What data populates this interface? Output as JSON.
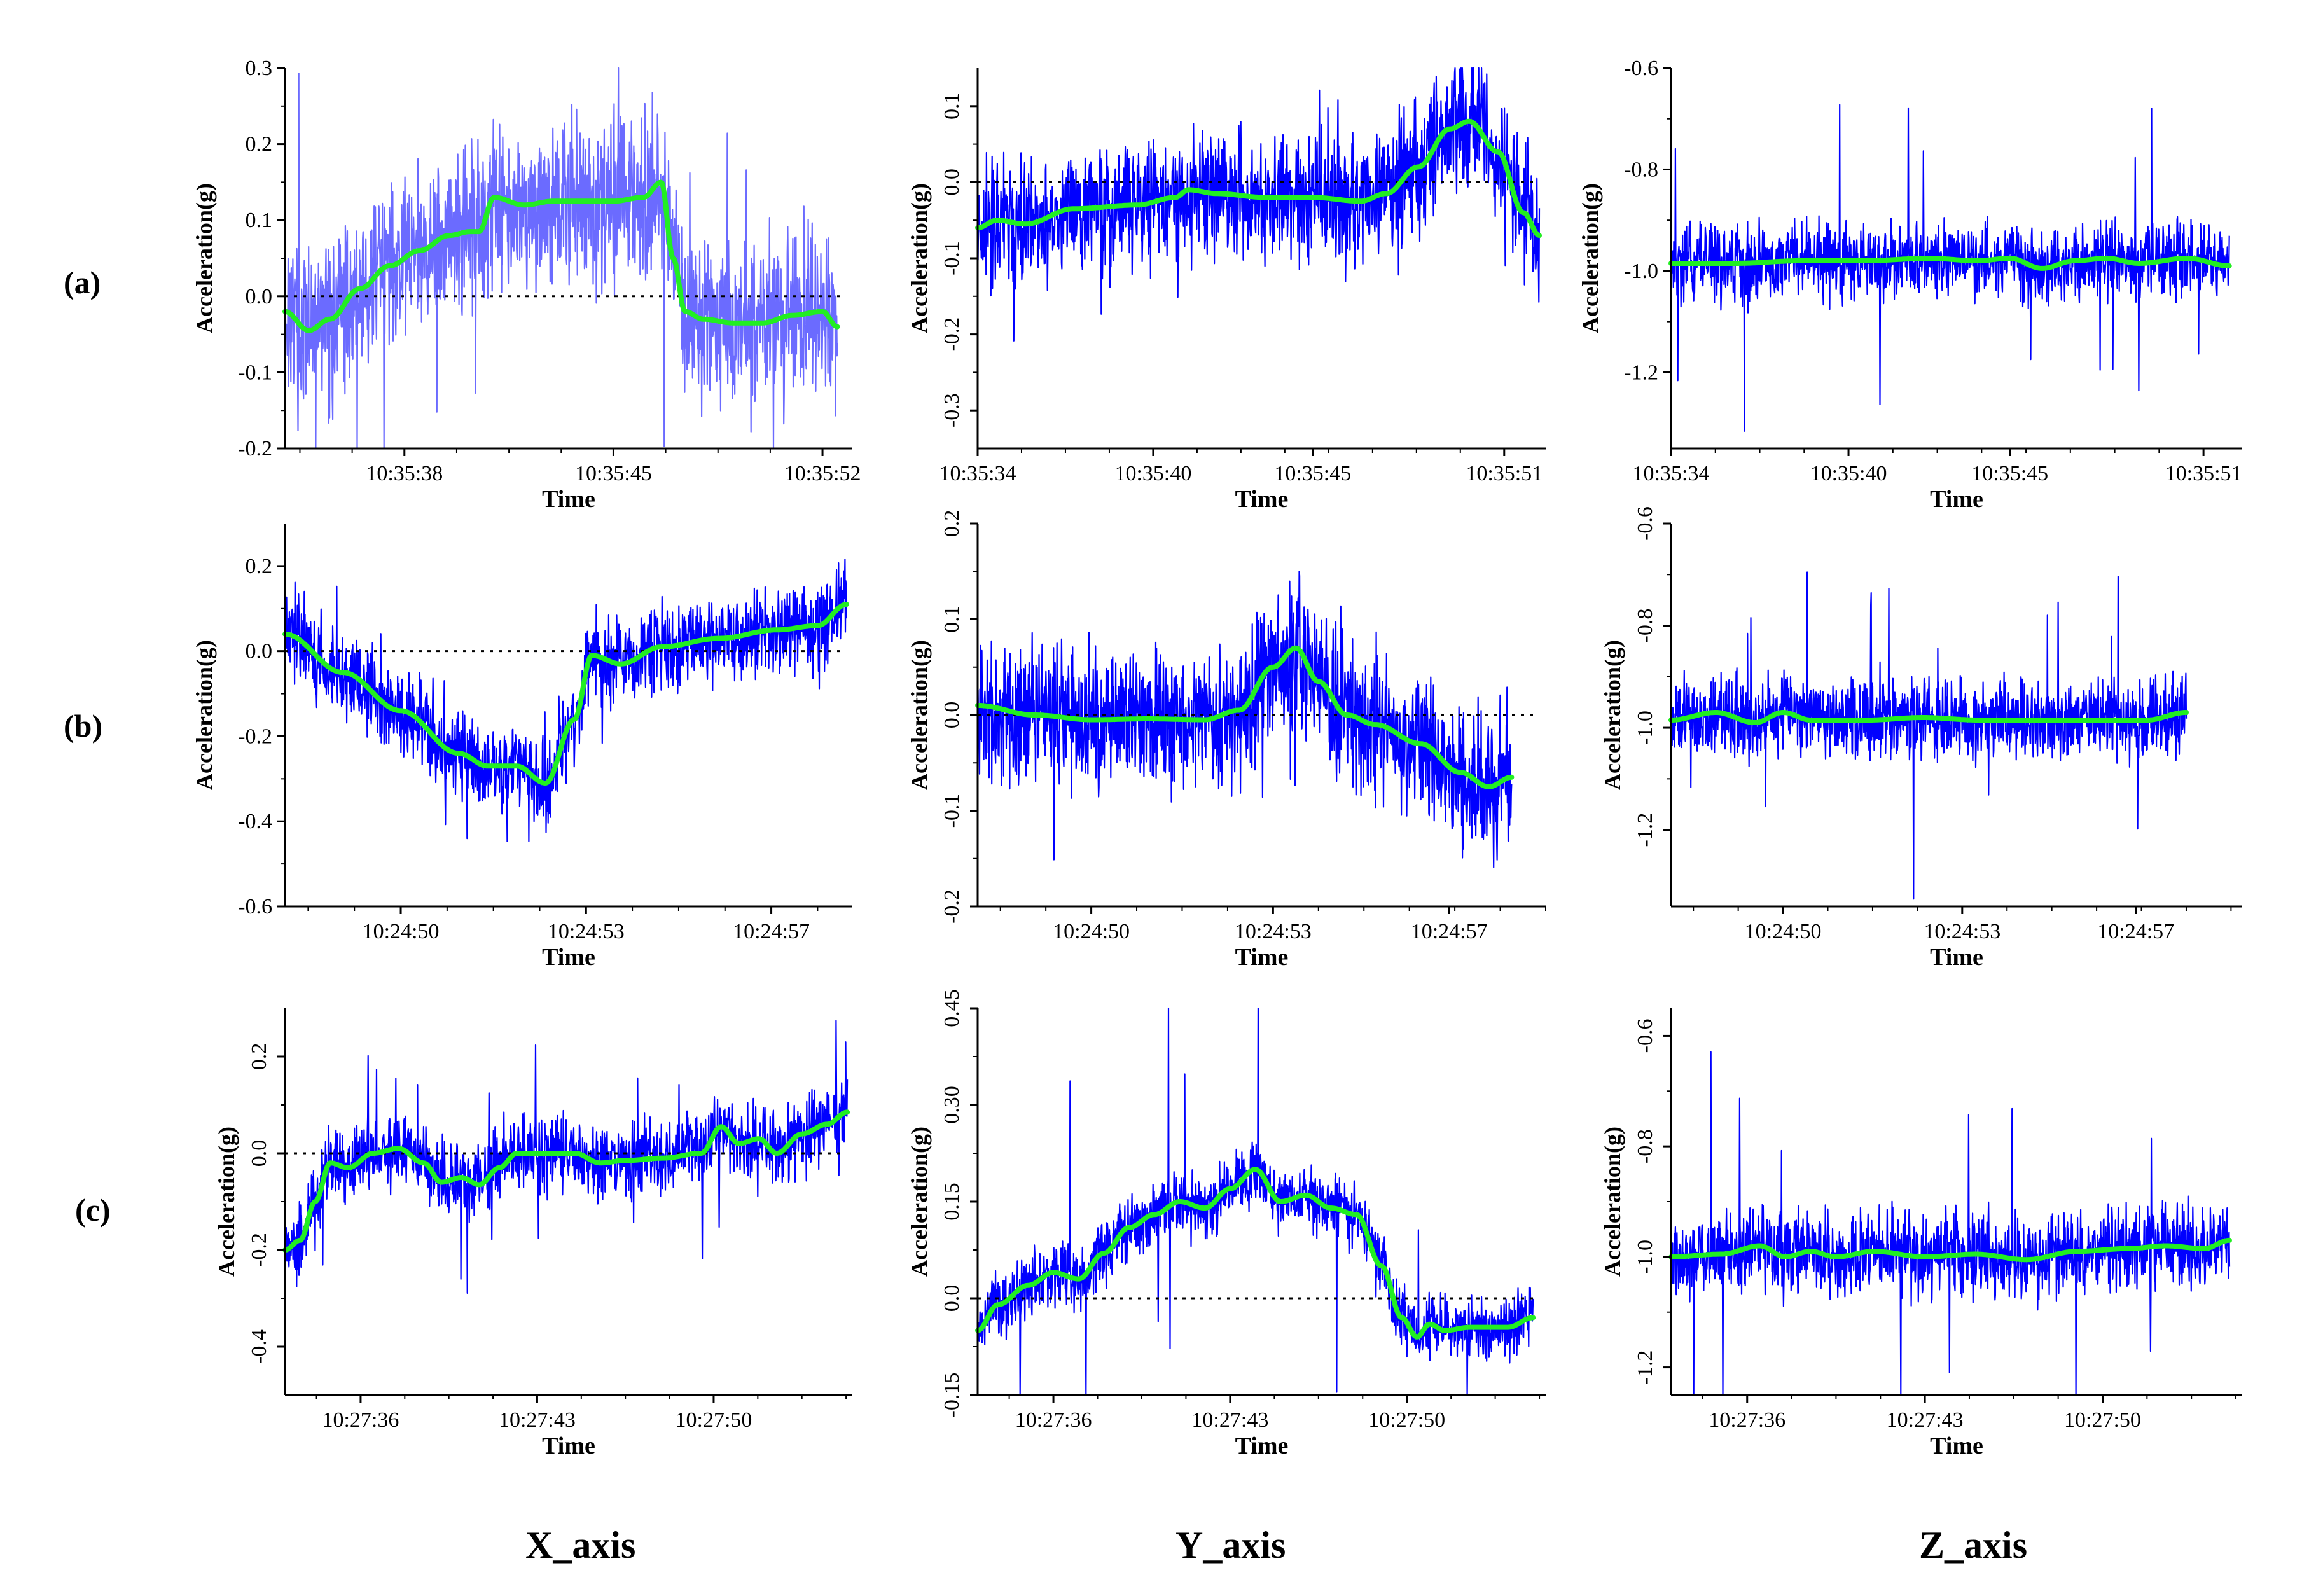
{
  "row_labels": [
    "(a)",
    "(b)",
    "(c)"
  ],
  "column_labels": [
    "X_axis",
    "Y_axis",
    "Z_axis"
  ],
  "colors": {
    "raw_signal": "#0000ff",
    "raw_signal_light": "#6b6bff",
    "smoothed": "#22ee22",
    "baseline": "#000000"
  },
  "chart_data": [
    {
      "type": "line",
      "row": "(a)",
      "axis": "X_axis",
      "title": "",
      "xlabel": "Time",
      "ylabel": "Acceleration(g)",
      "xticks": [
        "10:35:38",
        "10:35:45",
        "10:35:52"
      ],
      "xrange": [
        0,
        19
      ],
      "xtick_positions": [
        4,
        11,
        18
      ],
      "ylim": [
        -0.2,
        0.3
      ],
      "yticks": [
        -0.2,
        -0.1,
        0.0,
        0.1,
        0.2,
        0.3
      ],
      "ytick_labels_rotated": false,
      "baseline": 0.0,
      "raw_color": "#6b6bff",
      "noise": 0.065,
      "spike": 0.35,
      "series": [
        {
          "name": "raw",
          "style": "noisy"
        },
        {
          "name": "smoothed",
          "x": [
            0,
            0.8,
            1.5,
            2.5,
            3.5,
            4.5,
            5.5,
            6.2,
            6.5,
            7.0,
            8,
            9,
            10,
            11,
            12,
            12.6,
            13.0,
            13.4,
            14,
            15,
            16,
            17,
            18,
            18.5
          ],
          "values": [
            -0.02,
            -0.045,
            -0.03,
            0.01,
            0.04,
            0.06,
            0.08,
            0.085,
            0.085,
            0.13,
            0.12,
            0.125,
            0.125,
            0.125,
            0.13,
            0.15,
            0.05,
            -0.02,
            -0.03,
            -0.035,
            -0.035,
            -0.025,
            -0.02,
            -0.04
          ]
        }
      ]
    },
    {
      "type": "line",
      "row": "(a)",
      "axis": "Y_axis",
      "title": "",
      "xlabel": "Time",
      "ylabel": "Acceleration(g)",
      "xticks": [
        "10:35:34",
        "10:35:40",
        "10:35:45",
        "10:35:51"
      ],
      "xrange": [
        0,
        17.8
      ],
      "xtick_positions": [
        0,
        5.5,
        10.5,
        16.5
      ],
      "ylim": [
        -0.35,
        0.15
      ],
      "yticks": [
        -0.3,
        -0.2,
        -0.1,
        0.0,
        0.1
      ],
      "ytick_labels_rotated": true,
      "baseline": 0.0,
      "raw_color": "#0000ff",
      "noise": 0.05,
      "spike": 0.12,
      "series": [
        {
          "name": "raw",
          "style": "noisy"
        },
        {
          "name": "smoothed",
          "x": [
            0,
            0.6,
            1.5,
            3,
            5,
            6.2,
            6.6,
            7.5,
            9,
            10.5,
            12,
            12.8,
            13.8,
            14.8,
            15.4,
            16.3,
            17.1,
            17.6
          ],
          "values": [
            -0.06,
            -0.05,
            -0.055,
            -0.035,
            -0.03,
            -0.02,
            -0.01,
            -0.015,
            -0.02,
            -0.02,
            -0.025,
            -0.015,
            0.02,
            0.07,
            0.08,
            0.04,
            -0.04,
            -0.07
          ]
        }
      ]
    },
    {
      "type": "line",
      "row": "(a)",
      "axis": "Z_axis",
      "title": "",
      "xlabel": "Time",
      "ylabel": "Acceleration(g)",
      "xticks": [
        "10:35:34",
        "10:35:40",
        "10:35:45",
        "10:35:51"
      ],
      "xrange": [
        0,
        17.7
      ],
      "xtick_positions": [
        0,
        5.5,
        10.5,
        16.5
      ],
      "ylim": [
        -1.35,
        -0.6
      ],
      "yticks": [
        -1.2,
        -1.0,
        -0.8,
        -0.6
      ],
      "ytick_labels_rotated": false,
      "baseline": null,
      "raw_color": "#0000ff",
      "noise": 0.045,
      "spike": 0.35,
      "series": [
        {
          "name": "raw",
          "style": "noisy"
        },
        {
          "name": "smoothed",
          "x": [
            0,
            2,
            4,
            6,
            8,
            9.5,
            10.5,
            11.5,
            12.5,
            13.5,
            14.5,
            16,
            17.3
          ],
          "values": [
            -0.985,
            -0.985,
            -0.98,
            -0.98,
            -0.975,
            -0.98,
            -0.975,
            -0.995,
            -0.98,
            -0.975,
            -0.985,
            -0.975,
            -0.99
          ]
        }
      ]
    },
    {
      "type": "line",
      "row": "(b)",
      "axis": "X_axis",
      "title": "",
      "xlabel": "Time",
      "ylabel": "Acceleration(g)",
      "xticks": [
        "10:24:50",
        "10:24:53",
        "10:24:57"
      ],
      "xrange": [
        0,
        9.8
      ],
      "xtick_positions": [
        2,
        5.2,
        8.4
      ],
      "ylim": [
        -0.6,
        0.3
      ],
      "yticks": [
        -0.6,
        -0.4,
        -0.2,
        0.0,
        0.2
      ],
      "ytick_labels_rotated": false,
      "baseline": 0.0,
      "raw_color": "#0000ff",
      "noise": 0.06,
      "spike": 0.2,
      "series": [
        {
          "name": "raw",
          "style": "noisy"
        },
        {
          "name": "smoothed",
          "x": [
            0,
            1,
            2,
            3,
            3.5,
            4,
            4.5,
            5,
            5.3,
            5.8,
            6.5,
            7.5,
            8.5,
            9.2,
            9.7
          ],
          "values": [
            0.04,
            -0.05,
            -0.14,
            -0.24,
            -0.27,
            -0.27,
            -0.31,
            -0.16,
            -0.01,
            -0.03,
            0.01,
            0.03,
            0.05,
            0.06,
            0.11
          ]
        }
      ]
    },
    {
      "type": "line",
      "row": "(b)",
      "axis": "Y_axis",
      "title": "",
      "xlabel": "Time",
      "ylabel": "Acceleration(g)",
      "xticks": [
        "10:24:50",
        "10:24:53",
        "10:24:57"
      ],
      "xrange": [
        0,
        10
      ],
      "xtick_positions": [
        2,
        5.2,
        8.3
      ],
      "ylim": [
        -0.2,
        0.2
      ],
      "yticks": [
        -0.2,
        -0.1,
        0.0,
        0.1,
        0.2
      ],
      "ytick_labels_rotated": true,
      "baseline": 0.0,
      "raw_color": "#0000ff",
      "noise": 0.045,
      "spike": 0.12,
      "series": [
        {
          "name": "raw",
          "style": "noisy"
        },
        {
          "name": "smoothed",
          "x": [
            0,
            1,
            2,
            3,
            4,
            4.6,
            5.2,
            5.6,
            6.0,
            6.5,
            7,
            7.8,
            8.5,
            9.0,
            9.4
          ],
          "values": [
            0.01,
            0.0,
            -0.005,
            -0.004,
            -0.005,
            0.005,
            0.05,
            0.07,
            0.035,
            0.0,
            -0.01,
            -0.03,
            -0.06,
            -0.075,
            -0.065
          ]
        }
      ]
    },
    {
      "type": "line",
      "row": "(b)",
      "axis": "Z_axis",
      "title": "",
      "xlabel": "Time",
      "ylabel": "Acceleration(g)",
      "xticks": [
        "10:24:50",
        "10:24:53",
        "10:24:57"
      ],
      "xrange": [
        0,
        10.2
      ],
      "xtick_positions": [
        2,
        5.2,
        8.3
      ],
      "ylim": [
        -1.35,
        -0.6
      ],
      "yticks": [
        -1.2,
        -1.0,
        -0.8,
        -0.6
      ],
      "ytick_labels_rotated": true,
      "baseline": null,
      "raw_color": "#0000ff",
      "noise": 0.045,
      "spike": 0.3,
      "series": [
        {
          "name": "raw",
          "style": "noisy"
        },
        {
          "name": "smoothed",
          "x": [
            0,
            0.8,
            1.5,
            2.0,
            2.5,
            3.5,
            4.5,
            5.5,
            6.5,
            7.5,
            8.5,
            9.2
          ],
          "values": [
            -0.985,
            -0.97,
            -0.99,
            -0.97,
            -0.985,
            -0.985,
            -0.98,
            -0.985,
            -0.985,
            -0.985,
            -0.985,
            -0.97
          ]
        }
      ]
    },
    {
      "type": "line",
      "row": "(c)",
      "axis": "X_axis",
      "title": "",
      "xlabel": "Time",
      "ylabel": "Acceleration(g)",
      "xticks": [
        "10:27:36",
        "10:27:43",
        "10:27:50"
      ],
      "xrange": [
        0,
        22.5
      ],
      "xtick_positions": [
        3,
        10,
        17
      ],
      "ylim": [
        -0.5,
        0.3
      ],
      "yticks": [
        -0.4,
        -0.2,
        0.0,
        0.2
      ],
      "ytick_labels_rotated": true,
      "baseline": 0.0,
      "raw_color": "#0000ff",
      "noise": 0.045,
      "spike": 0.22,
      "series": [
        {
          "name": "raw",
          "style": "noisy"
        },
        {
          "name": "smoothed",
          "x": [
            0,
            0.6,
            1.2,
            1.8,
            2.5,
            3.5,
            4.5,
            5.5,
            6.2,
            7,
            7.7,
            8.5,
            9.2,
            10,
            11.5,
            12.5,
            13.5,
            15,
            16.5,
            17.3,
            18,
            18.8,
            19.5,
            20.5,
            21.5,
            22.3
          ],
          "values": [
            -0.2,
            -0.18,
            -0.1,
            -0.02,
            -0.03,
            0.0,
            0.01,
            -0.02,
            -0.06,
            -0.05,
            -0.065,
            -0.03,
            0.0,
            0.0,
            0.0,
            -0.02,
            -0.015,
            -0.01,
            0.0,
            0.055,
            0.02,
            0.03,
            0.0,
            0.04,
            0.06,
            0.085
          ]
        }
      ]
    },
    {
      "type": "line",
      "row": "(c)",
      "axis": "Y_axis",
      "title": "",
      "xlabel": "Time",
      "ylabel": "Acceleration(g)",
      "xticks": [
        "10:27:36",
        "10:27:43",
        "10:27:50"
      ],
      "xrange": [
        0,
        22.5
      ],
      "xtick_positions": [
        3,
        10,
        17
      ],
      "ylim": [
        -0.15,
        0.45
      ],
      "yticks": [
        -0.15,
        0.0,
        0.15,
        0.3,
        0.45
      ],
      "ytick_labels_rotated": true,
      "baseline": 0.0,
      "raw_color": "#0000ff",
      "noise": 0.03,
      "spike": 0.3,
      "series": [
        {
          "name": "raw",
          "style": "noisy"
        },
        {
          "name": "smoothed",
          "x": [
            0,
            0.8,
            2,
            3,
            4,
            5,
            6,
            7,
            8,
            9,
            10,
            11,
            12,
            13,
            14,
            15,
            16,
            16.8,
            17.4,
            17.9,
            18.5,
            19.5,
            21,
            22
          ],
          "values": [
            -0.05,
            -0.01,
            0.02,
            0.04,
            0.03,
            0.07,
            0.11,
            0.13,
            0.15,
            0.14,
            0.17,
            0.2,
            0.15,
            0.16,
            0.14,
            0.13,
            0.05,
            -0.03,
            -0.06,
            -0.04,
            -0.05,
            -0.045,
            -0.045,
            -0.03
          ]
        }
      ]
    },
    {
      "type": "line",
      "row": "(c)",
      "axis": "Z_axis",
      "title": "",
      "xlabel": "Time",
      "ylabel": "Acceleration(g)",
      "xticks": [
        "10:27:36",
        "10:27:43",
        "10:27:50"
      ],
      "xrange": [
        0,
        22.5
      ],
      "xtick_positions": [
        3,
        10,
        17
      ],
      "ylim": [
        -1.25,
        -0.55
      ],
      "yticks": [
        -1.2,
        -1.0,
        -0.8,
        -0.6
      ],
      "ytick_labels_rotated": true,
      "baseline": null,
      "raw_color": "#0000ff",
      "noise": 0.045,
      "spike": 0.3,
      "series": [
        {
          "name": "raw",
          "style": "noisy"
        },
        {
          "name": "smoothed",
          "x": [
            0,
            2,
            3.5,
            4.5,
            5.5,
            6.5,
            8,
            10,
            12,
            14,
            16,
            18,
            19.5,
            21,
            22
          ],
          "values": [
            -1.0,
            -0.995,
            -0.98,
            -1.0,
            -0.99,
            -1.0,
            -0.99,
            -1.0,
            -0.995,
            -1.005,
            -0.99,
            -0.985,
            -0.98,
            -0.985,
            -0.97
          ]
        }
      ]
    }
  ]
}
